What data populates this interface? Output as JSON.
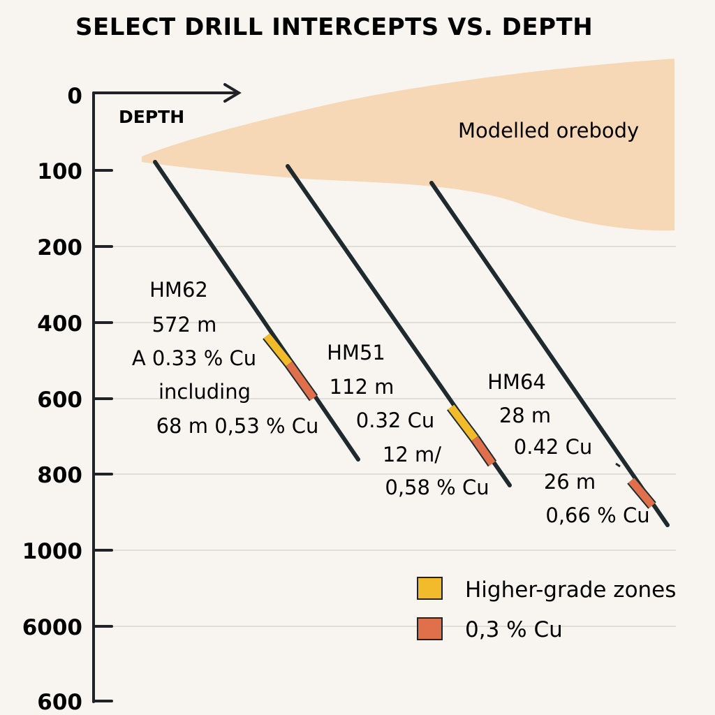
{
  "title": "SELECT DRILL INTERCEPTS VS. DEPTH",
  "axis": {
    "label": "DEPTH",
    "ticks": [
      "0",
      "100",
      "200",
      "400",
      "600",
      "800",
      "1000",
      "6000",
      "600"
    ]
  },
  "orebody_label": "Modelled orebody",
  "holes": [
    {
      "id": "HM62",
      "lines": [
        "HM62",
        "572 m",
        "A 0.33 % Cu",
        "including",
        "68 m 0,53 % Cu"
      ],
      "zones": [
        "higher-grade",
        "cutoff"
      ]
    },
    {
      "id": "HM51",
      "lines": [
        "HM51",
        "112 m",
        "0.32 Cu",
        "12 m/",
        "0,58 % Cu"
      ],
      "zones": [
        "higher-grade",
        "cutoff"
      ]
    },
    {
      "id": "HM64",
      "lines": [
        "HM64",
        "28 m",
        "0.42 Cu",
        "26 m",
        "0,66 % Cu"
      ],
      "zones": [
        "cutoff"
      ]
    }
  ],
  "legend": [
    {
      "label": "Higher-grade zones",
      "color": "#f2bb2c"
    },
    {
      "label": "0,3 % Cu",
      "color": "#e0704b"
    }
  ],
  "colors": {
    "orebody": "#f6d7b6",
    "drill_line": "#1f2a2e",
    "axis": "#1f2226",
    "grid": "#d9d6d0",
    "higher_grade": "#f2bb2c",
    "cutoff": "#e0704b"
  }
}
